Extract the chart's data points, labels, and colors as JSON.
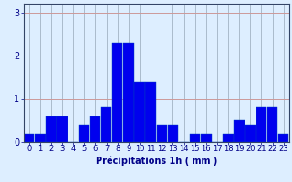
{
  "hours": [
    0,
    1,
    2,
    3,
    4,
    5,
    6,
    7,
    8,
    9,
    10,
    11,
    12,
    13,
    14,
    15,
    16,
    17,
    18,
    19,
    20,
    21,
    22,
    23
  ],
  "values": [
    0.2,
    0.2,
    0.6,
    0.6,
    0.0,
    0.4,
    0.6,
    0.8,
    2.3,
    2.3,
    1.4,
    1.4,
    0.4,
    0.4,
    0.0,
    0.2,
    0.2,
    0.0,
    0.2,
    0.5,
    0.4,
    0.8,
    0.8,
    0.2
  ],
  "bar_color": "#0000ee",
  "bar_edge_color": "#0044bb",
  "bg_color": "#ddeeff",
  "grid_color_h": "#cc9999",
  "grid_color_v": "#aabbcc",
  "axis_color": "#334466",
  "xlabel": "Précipitations 1h ( mm )",
  "xlabel_color": "#000088",
  "tick_color": "#000088",
  "ylim": [
    0,
    3.2
  ],
  "yticks": [
    0,
    1,
    2,
    3
  ],
  "xlabel_fontsize": 7,
  "tick_fontsize": 6,
  "ytick_fontsize": 7
}
